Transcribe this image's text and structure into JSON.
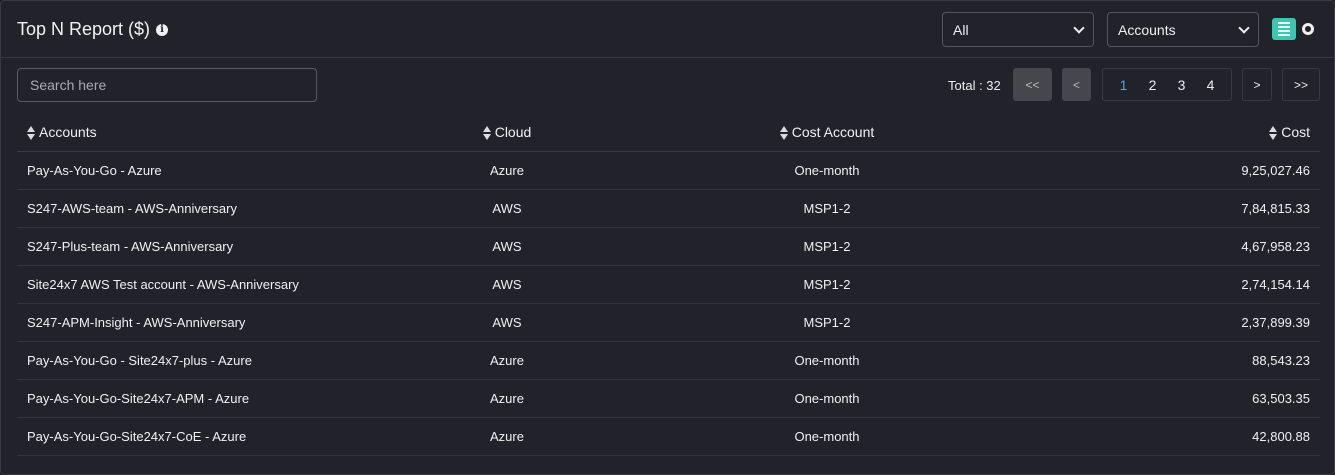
{
  "header": {
    "title": "Top N Report ($)",
    "filter": "All",
    "group_by": "Accounts"
  },
  "search": {
    "placeholder": "Search here"
  },
  "pagination": {
    "total": "Total : 32",
    "first": "<<",
    "prev": "<",
    "pages": [
      "1",
      "2",
      "3",
      "4"
    ],
    "current": "1",
    "next": ">",
    "last": ">>"
  },
  "table": {
    "columns": [
      "Accounts",
      "Cloud",
      "Cost Account",
      "Cost"
    ],
    "rows": [
      [
        "Pay-As-You-Go - Azure",
        "Azure",
        "One-month",
        "9,25,027.46"
      ],
      [
        "S247-AWS-team - AWS-Anniversary",
        "AWS",
        "MSP1-2",
        "7,84,815.33"
      ],
      [
        "S247-Plus-team - AWS-Anniversary",
        "AWS",
        "MSP1-2",
        "4,67,958.23"
      ],
      [
        "Site24x7 AWS Test account - AWS-Anniversary",
        "AWS",
        "MSP1-2",
        "2,74,154.14"
      ],
      [
        "S247-APM-Insight - AWS-Anniversary",
        "AWS",
        "MSP1-2",
        "2,37,899.39"
      ],
      [
        "Pay-As-You-Go - Site24x7-plus - Azure",
        "Azure",
        "One-month",
        "88,543.23"
      ],
      [
        "Pay-As-You-Go-Site24x7-APM - Azure",
        "Azure",
        "One-month",
        "63,503.35"
      ],
      [
        "Pay-As-You-Go-Site24x7-CoE - Azure",
        "Azure",
        "One-month",
        "42,800.88"
      ]
    ]
  },
  "colors": {
    "accent": "#3cc8b0",
    "active_page": "#4ea3e6",
    "background": "#22232a"
  }
}
